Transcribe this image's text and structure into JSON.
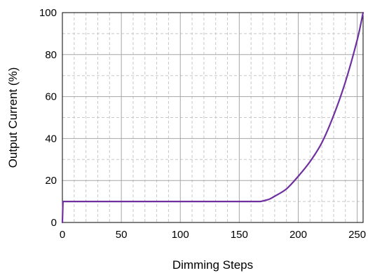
{
  "chart_data": {
    "type": "line",
    "title": "",
    "xlabel": "Dimming Steps",
    "ylabel": "Output Current (%)",
    "xlim": [
      0,
      255
    ],
    "ylim": [
      0,
      100
    ],
    "x_ticks": [
      0,
      50,
      100,
      150,
      200,
      250
    ],
    "y_ticks": [
      0,
      20,
      40,
      60,
      80,
      100
    ],
    "x_minor_step": 10,
    "y_minor_step": 10,
    "grid": true,
    "line_color": "#7030A0",
    "series": [
      {
        "x": [
          0,
          0.5,
          168,
          175,
          180,
          190,
          200,
          210,
          220,
          230,
          240,
          250,
          255
        ],
        "y": [
          0,
          10,
          10,
          11,
          12.5,
          16,
          22,
          29,
          38,
          51,
          67,
          87,
          100
        ]
      }
    ]
  }
}
